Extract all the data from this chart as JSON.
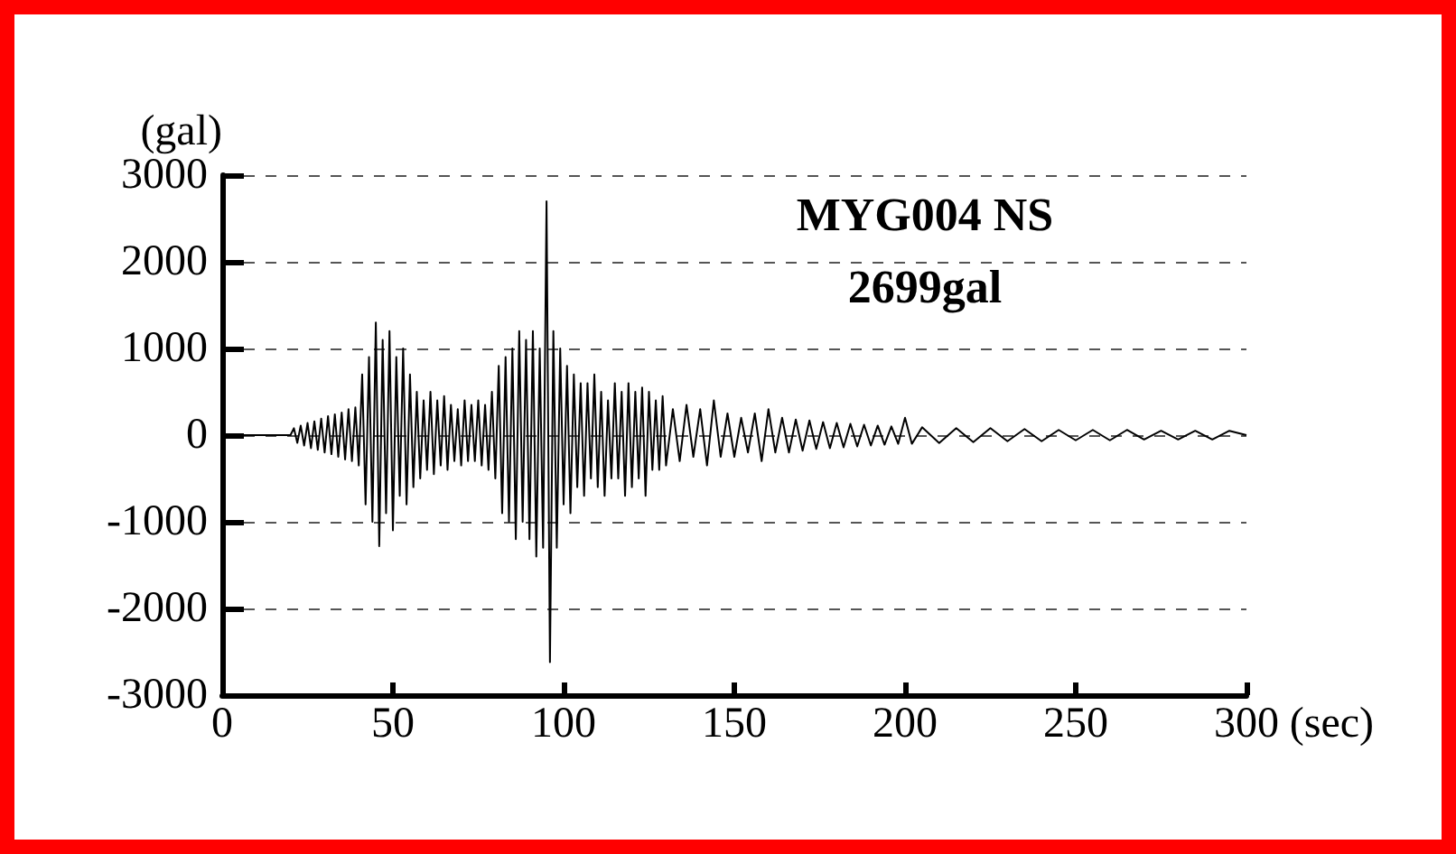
{
  "chart_data": {
    "type": "line",
    "xlabel": "(sec)",
    "ylabel": "(gal)",
    "annotations": [
      "MYG004 NS",
      "2699gal"
    ],
    "x": [
      0,
      20,
      21,
      22,
      23,
      24,
      25,
      26,
      27,
      28,
      29,
      30,
      31,
      32,
      33,
      34,
      35,
      36,
      37,
      38,
      39,
      40,
      41,
      42,
      43,
      44,
      45,
      46,
      47,
      48,
      49,
      50,
      51,
      52,
      53,
      54,
      55,
      56,
      57,
      58,
      59,
      60,
      61,
      62,
      63,
      64,
      65,
      66,
      67,
      68,
      69,
      70,
      71,
      72,
      73,
      74,
      75,
      76,
      77,
      78,
      79,
      80,
      81,
      82,
      83,
      84,
      85,
      86,
      87,
      88,
      89,
      90,
      91,
      92,
      93,
      94,
      95,
      96,
      97,
      98,
      99,
      100,
      101,
      102,
      103,
      104,
      105,
      106,
      107,
      108,
      109,
      110,
      111,
      112,
      113,
      114,
      115,
      116,
      117,
      118,
      119,
      120,
      121,
      122,
      123,
      124,
      125,
      126,
      127,
      128,
      129,
      130,
      132,
      134,
      136,
      138,
      140,
      142,
      144,
      146,
      148,
      150,
      152,
      154,
      156,
      158,
      160,
      162,
      164,
      166,
      168,
      170,
      172,
      174,
      176,
      178,
      180,
      182,
      184,
      186,
      188,
      190,
      192,
      194,
      196,
      198,
      200,
      202,
      205,
      210,
      215,
      220,
      225,
      230,
      235,
      240,
      245,
      250,
      255,
      260,
      265,
      270,
      275,
      280,
      285,
      290,
      295,
      300
    ],
    "series": [
      {
        "color": "#000000",
        "values": [
          0,
          0,
          80,
          -90,
          110,
          -120,
          140,
          -150,
          160,
          -170,
          190,
          -200,
          220,
          -220,
          240,
          -250,
          260,
          -280,
          300,
          -300,
          320,
          -350,
          700,
          -800,
          900,
          -1000,
          1300,
          -1280,
          1100,
          -900,
          1200,
          -1100,
          900,
          -700,
          1000,
          -800,
          700,
          -600,
          500,
          -500,
          400,
          -400,
          500,
          -450,
          400,
          -350,
          450,
          -400,
          350,
          -300,
          300,
          -350,
          400,
          -300,
          350,
          -300,
          400,
          -350,
          350,
          -400,
          500,
          -500,
          800,
          -900,
          900,
          -1000,
          1000,
          -1200,
          1200,
          -1000,
          1100,
          -1200,
          1200,
          -1400,
          1000,
          -1300,
          2699,
          -2620,
          1200,
          -1300,
          1000,
          -800,
          800,
          -900,
          700,
          -600,
          600,
          -700,
          600,
          -500,
          700,
          -600,
          500,
          -700,
          400,
          -500,
          600,
          -500,
          500,
          -700,
          600,
          -600,
          500,
          -500,
          550,
          -700,
          500,
          -400,
          400,
          -400,
          450,
          -350,
          300,
          -300,
          350,
          -250,
          300,
          -350,
          400,
          -250,
          250,
          -250,
          200,
          -200,
          250,
          -300,
          300,
          -200,
          200,
          -200,
          180,
          -180,
          170,
          -160,
          150,
          -150,
          140,
          -140,
          130,
          -130,
          120,
          -120,
          110,
          -110,
          100,
          -100,
          200,
          -100,
          90,
          -90,
          80,
          -80,
          80,
          -70,
          70,
          -70,
          60,
          -60,
          60,
          -60,
          60,
          -50,
          50,
          -50,
          50,
          -50,
          50,
          0
        ]
      }
    ],
    "xlim": [
      0,
      300
    ],
    "xticks": [
      0,
      50,
      100,
      150,
      200,
      250,
      300
    ],
    "ylim": [
      -3000,
      3000
    ],
    "yticks": [
      -3000,
      -2000,
      -1000,
      0,
      1000,
      2000,
      3000
    ],
    "grid": "y",
    "line_style": "solid",
    "marker": "none"
  }
}
